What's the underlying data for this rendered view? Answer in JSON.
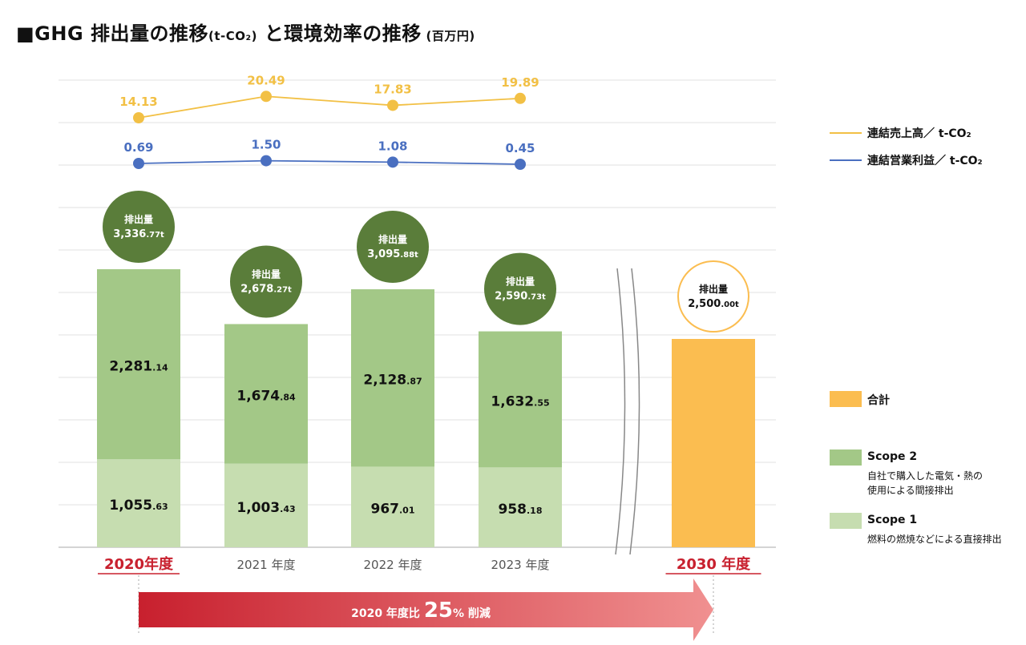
{
  "title": {
    "main": "■GHG 排出量の推移",
    "unit1": "(t-CO₂)",
    "connector": " と環境効率の推移",
    "unit2": " (百万円)"
  },
  "legend": {
    "line1": "連結売上高／ t-CO₂",
    "line2": "連結営業利益／ t-CO₂",
    "total": "合計",
    "scope2": "Scope 2",
    "scope2_desc1": "自社で購入した電気・熱の",
    "scope2_desc2": "使用による間接排出",
    "scope1": "Scope 1",
    "scope1_desc": "燃料の燃焼などによる直接排出"
  },
  "colors": {
    "scope1": "#c6ddb0",
    "scope2": "#a3c887",
    "total": "#fbbd50",
    "bubble": "#5a7d3a",
    "line_sales": "#f2c045",
    "line_profit": "#4a6fc0",
    "highlight_year": "#c8202e",
    "arrow_start": "#c8202e",
    "arrow_end": "#f09090"
  },
  "chart_data": {
    "type": "bar",
    "stacked": true,
    "categories": [
      "2020年度",
      "2021 年度",
      "2022 年度",
      "2023 年度",
      "2030 年度"
    ],
    "highlighted_categories": [
      "2020年度",
      "2030 年度"
    ],
    "series": [
      {
        "name": "Scope 1",
        "values": [
          1055.63,
          1003.43,
          967.01,
          958.18,
          null
        ],
        "labels": [
          [
            "1,055",
            ".63"
          ],
          [
            "1,003",
            ".43"
          ],
          [
            "967",
            ".01"
          ],
          [
            "958",
            ".18"
          ],
          null
        ]
      },
      {
        "name": "Scope 2",
        "values": [
          2281.14,
          1674.84,
          2128.87,
          1632.55,
          null
        ],
        "labels": [
          [
            "2,281",
            ".14"
          ],
          [
            "1,674",
            ".84"
          ],
          [
            "2,128",
            ".87"
          ],
          [
            "1,632",
            ".55"
          ],
          null
        ]
      },
      {
        "name": "合計",
        "values": [
          null,
          null,
          null,
          null,
          2500.0
        ],
        "labels": [
          null,
          null,
          null,
          null,
          null
        ]
      }
    ],
    "totals": {
      "caption": "排出量",
      "values": [
        3336.77,
        2678.27,
        3095.88,
        2590.73,
        2500.0
      ],
      "labels": [
        [
          "3,336",
          ".77t"
        ],
        [
          "2,678",
          ".27t"
        ],
        [
          "3,095",
          ".88t"
        ],
        [
          "2,590",
          ".73t"
        ],
        [
          "2,500",
          ".00t"
        ]
      ]
    },
    "lines": [
      {
        "name": "連結売上高／ t-CO₂",
        "values": [
          14.13,
          20.49,
          17.83,
          19.89
        ],
        "labels": [
          "14.13",
          "20.49",
          "17.83",
          "19.89"
        ]
      },
      {
        "name": "連結営業利益／ t-CO₂",
        "values": [
          0.69,
          1.5,
          1.08,
          0.45
        ],
        "labels": [
          "0.69",
          "1.50",
          "1.08",
          "0.45"
        ]
      }
    ],
    "reduction_arrow": {
      "prefix": "2020 年度比 ",
      "number": "25",
      "suffix": "% 削減"
    },
    "axis_break": true,
    "grid": true,
    "legend_position": "right"
  }
}
